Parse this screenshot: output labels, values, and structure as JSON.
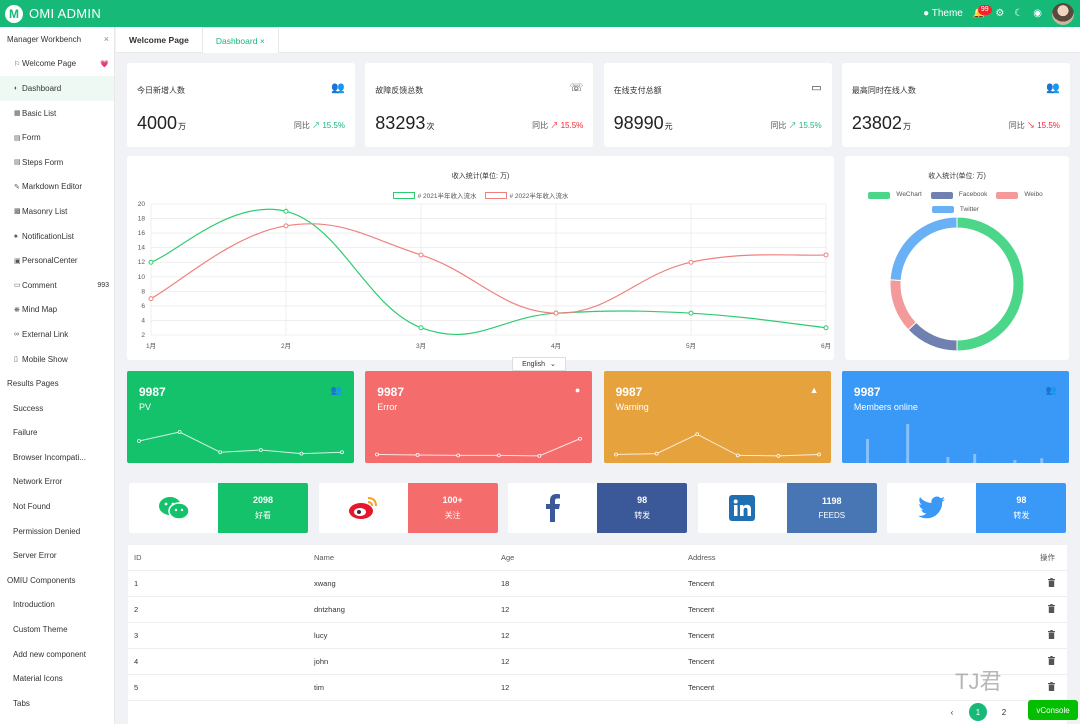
{
  "header": {
    "logo": "M",
    "title": "OMI ADMIN",
    "theme_label": "Theme",
    "notify_count": "99"
  },
  "sidebar": {
    "workbench": "Manager Workbench",
    "items": [
      {
        "label": "Welcome Page",
        "icon": "⚐",
        "tag": "💗"
      },
      {
        "label": "Dashboard",
        "icon": "◐",
        "active": true
      },
      {
        "label": "Basic List",
        "icon": "▦"
      },
      {
        "label": "Form",
        "icon": "▤"
      },
      {
        "label": "Steps Form",
        "icon": "▤"
      },
      {
        "label": "Markdown Editor",
        "icon": "✎"
      },
      {
        "label": "Masonry List",
        "icon": "▩"
      },
      {
        "label": "NotificationList",
        "icon": "♠"
      },
      {
        "label": "PersonalCenter",
        "icon": "▣"
      },
      {
        "label": "Comment",
        "icon": "▭",
        "tag": "993"
      },
      {
        "label": "Mind Map",
        "icon": "❋"
      },
      {
        "label": "External Link",
        "icon": "∞"
      },
      {
        "label": "Mobile Show",
        "icon": "▯"
      }
    ],
    "results": "Results Pages",
    "result_items": [
      "Success",
      "Failure",
      "Browser Incompati...",
      "Network Error",
      "Not Found",
      "Permission Denied",
      "Server Error"
    ],
    "components": "OMIU Components",
    "component_items": [
      "Introduction",
      "Custom Theme",
      "Add new component",
      "Material Icons",
      "Tabs"
    ]
  },
  "tabs": [
    {
      "label": "Welcome Page"
    },
    {
      "label": "Dashboard",
      "close": "×"
    }
  ],
  "stats": [
    {
      "title": "今日新增人数",
      "icon": "👥",
      "value": "4000",
      "unit": "万",
      "cmp_label": "同比",
      "arrow": "↗",
      "pct": "15.5%",
      "trend": "up"
    },
    {
      "title": "故障反馈总数",
      "icon": "☏",
      "value": "83293",
      "unit": "次",
      "cmp_label": "同比",
      "arrow": "↗",
      "pct": "15.5%",
      "trend": "down"
    },
    {
      "title": "在线支付总额",
      "icon": "▭",
      "value": "98990",
      "unit": "元",
      "cmp_label": "同比",
      "arrow": "↗",
      "pct": "15.5%",
      "trend": "up"
    },
    {
      "title": "最高同时在线人数",
      "icon": "👥",
      "value": "23802",
      "unit": "万",
      "cmp_label": "同比",
      "arrow": "↘",
      "pct": "15.5%",
      "trend": "down"
    }
  ],
  "language_select": "English",
  "metric_cards": [
    {
      "value": "9987",
      "label": "PV",
      "icon": "👥",
      "color": "#13c26b"
    },
    {
      "value": "9987",
      "label": "Error",
      "icon": "●",
      "color": "#f56c6c"
    },
    {
      "value": "9987",
      "label": "Warning",
      "icon": "▲",
      "color": "#e6a23c"
    },
    {
      "value": "9987",
      "label": "Members online",
      "icon": "👥",
      "color": "#3a98f7"
    }
  ],
  "social": [
    {
      "name": "wechat",
      "value": "2098",
      "label": "好看",
      "color": "#13c26b"
    },
    {
      "name": "weibo",
      "value": "100+",
      "label": "关注",
      "color": "#f56c6c"
    },
    {
      "name": "facebook",
      "value": "98",
      "label": "转发",
      "color": "#3b5998"
    },
    {
      "name": "linkedin",
      "value": "1198",
      "label": "FEEDS",
      "color": "#4875b4"
    },
    {
      "name": "twitter",
      "value": "98",
      "label": "转发",
      "color": "#3a98f7"
    }
  ],
  "table": {
    "headers": [
      "ID",
      "Name",
      "Age",
      "Address",
      "操作"
    ],
    "rows": [
      [
        "1",
        "xwang",
        "18",
        "Tencent"
      ],
      [
        "2",
        "dntzhang",
        "12",
        "Tencent"
      ],
      [
        "3",
        "lucy",
        "12",
        "Tencent"
      ],
      [
        "4",
        "john",
        "12",
        "Tencent"
      ],
      [
        "5",
        "tim",
        "12",
        "Tencent"
      ]
    ]
  },
  "pagination": {
    "prev": "‹",
    "pages": [
      "1",
      "2",
      "3"
    ]
  },
  "vconsole": "vConsole",
  "watermark": "TJ君",
  "chart_data": [
    {
      "type": "line",
      "title": "收入统计(单位: 万)",
      "categories": [
        "1月",
        "2月",
        "3月",
        "4月",
        "5月",
        "6月"
      ],
      "ylim": [
        2,
        20
      ],
      "yticks": [
        2,
        4,
        6,
        8,
        10,
        12,
        14,
        16,
        18,
        20
      ],
      "series": [
        {
          "name": "# 2021半年收入流水",
          "values": [
            12,
            19,
            3,
            5,
            5,
            3
          ],
          "color": "#2ecc71"
        },
        {
          "name": "# 2022半年收入流水",
          "values": [
            7,
            17,
            13,
            5,
            12,
            13
          ],
          "color": "#f08080"
        }
      ],
      "legend": "top-center",
      "grid": true
    },
    {
      "type": "pie",
      "title": "收入统计(单位: 万)",
      "labels": [
        "WeChart",
        "Facebook",
        "Weibo",
        "Twitter"
      ],
      "values": [
        50,
        13,
        13,
        24
      ],
      "colors": [
        "#4cd68a",
        "#7080b0",
        "#f49a9a",
        "#6ab0f5"
      ],
      "legend": "top"
    },
    {
      "type": "line",
      "name": "PV",
      "values": [
        40,
        60,
        15,
        20,
        12,
        15
      ]
    },
    {
      "type": "line",
      "name": "Error",
      "values": [
        10,
        9,
        8,
        8,
        7,
        45
      ]
    },
    {
      "type": "line",
      "name": "Warning",
      "values": [
        10,
        12,
        55,
        8,
        7,
        10
      ]
    },
    {
      "type": "bar",
      "name": "Members online",
      "values": [
        40,
        0,
        0,
        65,
        0,
        0,
        10,
        0,
        15,
        0,
        0,
        5,
        0,
        8
      ]
    }
  ]
}
